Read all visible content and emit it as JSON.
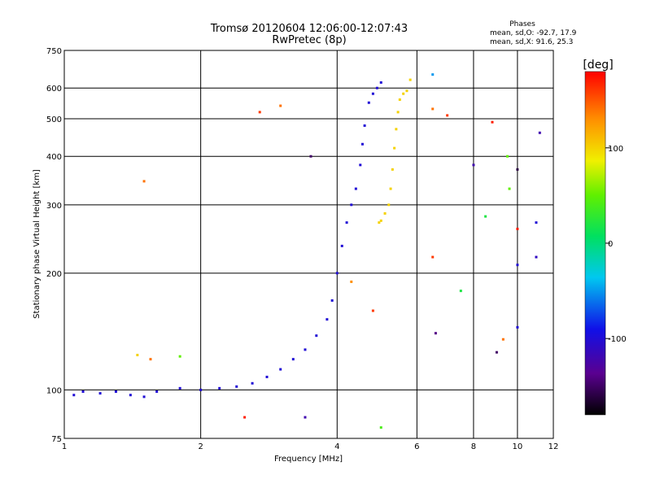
{
  "chart_data": {
    "type": "scatter",
    "title": "Tromsø 20120604 12:06:00-12:07:43",
    "subtitle": "RwPretec (8p)",
    "xlabel": "Frequency [MHz]",
    "ylabel": "Stationary phase Virtual Height [km]",
    "x_scale": "log",
    "y_scale": "log",
    "xlim": [
      1,
      12
    ],
    "ylim": [
      75,
      750
    ],
    "grid": true,
    "x_ticks": [
      1,
      2,
      4,
      6,
      8,
      10,
      12
    ],
    "x_tick_labels": [
      "1",
      "2",
      "4",
      "6",
      "8",
      "10",
      "12"
    ],
    "y_ticks": [
      75,
      100,
      200,
      300,
      400,
      500,
      600,
      750
    ],
    "y_tick_labels": [
      "75",
      "100",
      "200",
      "300",
      "400",
      "500",
      "600",
      "750"
    ],
    "phases_box": {
      "title": "Phases",
      "line_o": "mean, sd,O: -92.7, 17.9",
      "line_x": "mean, sd,X:  91.6, 25.3"
    },
    "colorbar": {
      "label": "[deg]",
      "range": [
        -180,
        180
      ],
      "ticks": [
        100,
        0,
        -100
      ],
      "tick_labels": [
        "100",
        "0",
        "-100"
      ]
    },
    "series": [
      {
        "points": [
          [
            1.05,
            97,
            -100
          ],
          [
            1.1,
            99,
            -100
          ],
          [
            1.2,
            98,
            -100
          ],
          [
            1.3,
            99,
            -100
          ],
          [
            1.4,
            97,
            -100
          ],
          [
            1.5,
            96,
            -100
          ],
          [
            1.6,
            99,
            -100
          ],
          [
            1.8,
            101,
            -100
          ],
          [
            2.0,
            100,
            -100
          ],
          [
            2.2,
            101,
            -100
          ],
          [
            2.4,
            102,
            -100
          ],
          [
            2.6,
            104,
            -100
          ],
          [
            2.8,
            108,
            -100
          ],
          [
            3.0,
            113,
            -100
          ],
          [
            3.2,
            120,
            -100
          ],
          [
            3.4,
            127,
            -100
          ],
          [
            3.6,
            138,
            -100
          ],
          [
            3.8,
            152,
            -100
          ],
          [
            3.9,
            170,
            -100
          ],
          [
            4.0,
            200,
            -100
          ],
          [
            4.1,
            235,
            -100
          ],
          [
            4.2,
            270,
            -100
          ],
          [
            4.3,
            300,
            -100
          ],
          [
            4.4,
            330,
            -100
          ],
          [
            4.5,
            380,
            -100
          ],
          [
            4.55,
            430,
            -100
          ],
          [
            4.6,
            480,
            -100
          ],
          [
            4.7,
            550,
            -100
          ],
          [
            4.8,
            580,
            -100
          ],
          [
            4.9,
            600,
            -100
          ],
          [
            5.0,
            620,
            -100
          ]
        ]
      },
      {
        "points": [
          [
            4.95,
            270,
            100
          ],
          [
            5.0,
            273,
            100
          ],
          [
            5.1,
            285,
            100
          ],
          [
            5.2,
            300,
            100
          ],
          [
            5.25,
            330,
            100
          ],
          [
            5.3,
            370,
            100
          ],
          [
            5.35,
            420,
            100
          ],
          [
            5.4,
            470,
            100
          ],
          [
            5.45,
            520,
            100
          ],
          [
            5.5,
            560,
            100
          ],
          [
            5.6,
            580,
            100
          ],
          [
            5.7,
            590,
            100
          ],
          [
            5.8,
            630,
            100
          ]
        ]
      },
      {
        "points": [
          [
            1.55,
            120,
            140
          ],
          [
            2.7,
            520,
            160
          ],
          [
            3.0,
            540,
            140
          ],
          [
            3.5,
            400,
            -150
          ],
          [
            6.5,
            650,
            -50
          ],
          [
            6.5,
            530,
            140
          ],
          [
            7.0,
            510,
            160
          ],
          [
            8.8,
            490,
            170
          ],
          [
            9.5,
            400,
            50
          ],
          [
            10.0,
            370,
            -160
          ],
          [
            10.0,
            260,
            170
          ],
          [
            11.0,
            270,
            -100
          ],
          [
            11.0,
            220,
            -110
          ],
          [
            7.5,
            180,
            20
          ],
          [
            9.0,
            125,
            -150
          ],
          [
            9.3,
            135,
            140
          ],
          [
            10.0,
            145,
            -100
          ],
          [
            5.0,
            80,
            40
          ],
          [
            1.5,
            345,
            140
          ],
          [
            9.6,
            330,
            50
          ],
          [
            11.2,
            460,
            -120
          ],
          [
            6.5,
            220,
            160
          ],
          [
            8.0,
            380,
            -120
          ],
          [
            4.8,
            160,
            160
          ],
          [
            4.3,
            190,
            130
          ],
          [
            6.6,
            140,
            -140
          ],
          [
            2.5,
            85,
            170
          ],
          [
            3.4,
            85,
            -120
          ],
          [
            1.8,
            122,
            50
          ],
          [
            1.45,
            123,
            100
          ],
          [
            8.5,
            280,
            20
          ],
          [
            10.0,
            210,
            -100
          ]
        ]
      }
    ]
  }
}
